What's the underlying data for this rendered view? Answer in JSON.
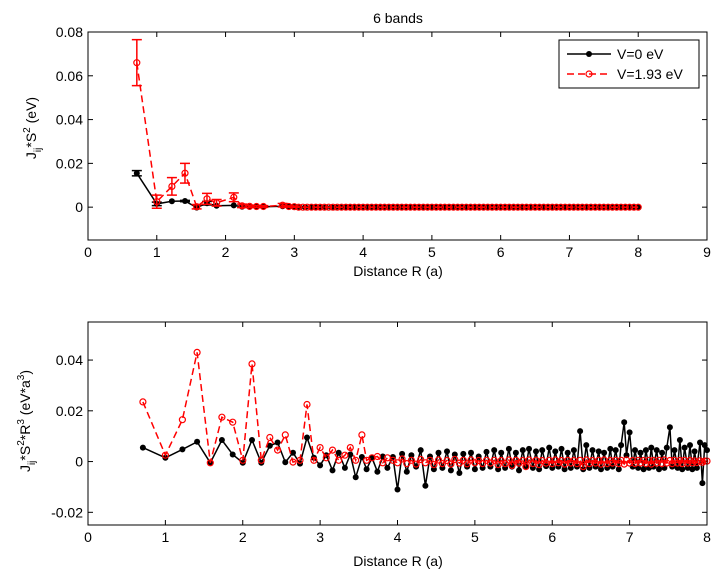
{
  "chart_data": [
    {
      "type": "line",
      "title": "6 bands",
      "xlabel": "Distance R (a)",
      "ylabel_parts": {
        "base": "J",
        "sub": "ij",
        "mid": "*S",
        "sup": "2",
        "unit": " (eV)"
      },
      "xlim": [
        0,
        9
      ],
      "ylim": [
        -0.015,
        0.08
      ],
      "xticks": [
        0,
        1,
        2,
        3,
        4,
        5,
        6,
        7,
        8,
        9
      ],
      "yticks": [
        0,
        0.02,
        0.04,
        0.06,
        0.08
      ],
      "ytick_labels": [
        "0",
        "0.02",
        "0.04",
        "0.06",
        "0.08"
      ],
      "legend": {
        "position": "top-right",
        "entries": [
          "V=0 eV",
          "V=1.93 eV"
        ]
      },
      "series": [
        {
          "name": "V=0 eV",
          "color": "#000000",
          "marker": "filled-circle",
          "line": "solid",
          "x": [
            0.71,
            1.0,
            1.22,
            1.41,
            1.58,
            1.73,
            1.87,
            2.12,
            2.24,
            2.35,
            2.45,
            2.55,
            2.83,
            2.92,
            3.0,
            3.08,
            3.16,
            3.24,
            3.32,
            3.39,
            3.46,
            3.54,
            3.6,
            3.67,
            3.74,
            3.81,
            3.87,
            3.94,
            4.0
          ],
          "y": [
            0.0155,
            0.0015,
            0.0027,
            0.0028,
            -0.0002,
            0.0018,
            0.0006,
            0.0008,
            0.0002,
            0.0001,
            0.0001,
            0.0002,
            0.0004,
            0.0001,
            0.0001,
            0,
            0,
            0,
            0,
            0,
            0,
            0,
            0,
            0,
            0,
            0,
            0,
            0,
            0
          ],
          "err": [
            0.0012,
            0.0008,
            0,
            0.0003,
            0,
            0.0008,
            0,
            0,
            0,
            0,
            0,
            0,
            0,
            0,
            0,
            0,
            0,
            0,
            0,
            0,
            0,
            0,
            0,
            0,
            0,
            0,
            0,
            0,
            0
          ]
        },
        {
          "name": "V=1.93 eV",
          "color": "#ff0000",
          "marker": "open-circle",
          "line": "dashed",
          "x": [
            0.71,
            1.0,
            1.22,
            1.41,
            1.58,
            1.73,
            1.87,
            2.12,
            2.24,
            2.35,
            2.45,
            2.55,
            2.83,
            2.92,
            3.0
          ],
          "y": [
            0.066,
            0.0025,
            0.0095,
            0.0155,
            0.0002,
            0.0038,
            0.002,
            0.0045,
            0.0006,
            0.0004,
            0.0003,
            0.0003,
            0.0009,
            0.0003,
            0.0002
          ],
          "err": [
            0.0105,
            0.003,
            0.004,
            0.0045,
            0.001,
            0.0025,
            0.0015,
            0.002,
            0.0008,
            0.0005,
            0.0004,
            0.0004,
            0.0008,
            0.0003,
            0.0003
          ]
        }
      ],
      "tail": {
        "note": "Both series continue with near-zero values from R=3 to R=8 (dense markers).",
        "x_start": 3.0,
        "x_end": 8.0,
        "step": 0.0625,
        "y": 0
      }
    },
    {
      "type": "line",
      "title": "",
      "xlabel": "Distance R (a)",
      "ylabel_parts": {
        "base": "J",
        "sub": "ij",
        "mid": "*S",
        "sup": "2",
        "mid2": "*R",
        "sup2": "3",
        "unit_pre": " (eV*a",
        "unit_sup": "3",
        "unit_post": ")"
      },
      "xlim": [
        0,
        8
      ],
      "ylim": [
        -0.025,
        0.055
      ],
      "xticks": [
        0,
        1,
        2,
        3,
        4,
        5,
        6,
        7,
        8
      ],
      "yticks": [
        -0.02,
        0,
        0.02,
        0.04
      ],
      "ytick_labels": [
        "-0.02",
        "0",
        "0.02",
        "0.04"
      ],
      "series": [
        {
          "name": "V=0 eV",
          "color": "#000000",
          "marker": "filled-circle",
          "line": "solid",
          "x": [
            0.71,
            1.0,
            1.22,
            1.41,
            1.58,
            1.73,
            1.87,
            2.0,
            2.12,
            2.24,
            2.35,
            2.45,
            2.55,
            2.65,
            2.74,
            2.83,
            2.92,
            3.0,
            3.08,
            3.16,
            3.24,
            3.32,
            3.39,
            3.46,
            3.54,
            3.6,
            3.67,
            3.74,
            3.81,
            3.87,
            3.94,
            4.0,
            4.06,
            4.12,
            4.18,
            4.24,
            4.3,
            4.36,
            4.42,
            4.47,
            4.53,
            4.58,
            4.64,
            4.69,
            4.74,
            4.8,
            4.85,
            4.9,
            4.95,
            5.0,
            5.05,
            5.1,
            5.15,
            5.2,
            5.25,
            5.3,
            5.34,
            5.39,
            5.44,
            5.48,
            5.53,
            5.57,
            5.62,
            5.66,
            5.7,
            5.75,
            5.79,
            5.83,
            5.87,
            5.92,
            5.96,
            6.0,
            6.04,
            6.08,
            6.12,
            6.16,
            6.2,
            6.24,
            6.28,
            6.32,
            6.36,
            6.4,
            6.44,
            6.48,
            6.52,
            6.56,
            6.6,
            6.63,
            6.67,
            6.71,
            6.75,
            6.78,
            6.82,
            6.86,
            6.89,
            6.93,
            6.96,
            7.0,
            7.04,
            7.07,
            7.11,
            7.14,
            7.18,
            7.21,
            7.25,
            7.28,
            7.31,
            7.35,
            7.38,
            7.42,
            7.45,
            7.48,
            7.52,
            7.55,
            7.58,
            7.62,
            7.65,
            7.68,
            7.71,
            7.75,
            7.78,
            7.81,
            7.84,
            7.87,
            7.91,
            7.94,
            7.97,
            8.0
          ],
          "y": [
            0.0055,
            0.0015,
            0.0048,
            0.0078,
            -0.0005,
            0.0085,
            0.0028,
            -0.0005,
            0.0085,
            -0.0005,
            0.0062,
            0.0075,
            -0.0003,
            0.0035,
            -0.0008,
            0.0095,
            0.0015,
            -0.0015,
            0.0025,
            -0.0035,
            0.0035,
            -0.0025,
            0.0028,
            -0.0062,
            0.0018,
            -0.003,
            0.0015,
            -0.004,
            0.002,
            -0.0025,
            0.0018,
            -0.011,
            0.003,
            -0.004,
            0.0025,
            -0.002,
            0.0045,
            -0.0095,
            0.002,
            -0.003,
            0.0035,
            -0.0025,
            0.004,
            -0.0035,
            0.0028,
            -0.0045,
            0.003,
            -0.002,
            0.0035,
            -0.003,
            0.002,
            -0.0025,
            0.0038,
            -0.002,
            0.0045,
            -0.003,
            0.0035,
            -0.0025,
            0.005,
            -0.002,
            0.0035,
            -0.0035,
            0.0045,
            -0.002,
            0.005,
            -0.0025,
            0.004,
            -0.003,
            0.0045,
            -0.0018,
            0.0055,
            -0.0025,
            0.004,
            -0.002,
            0.005,
            -0.003,
            0.0035,
            -0.0025,
            0.0045,
            -0.002,
            0.012,
            -0.003,
            0.0065,
            -0.0025,
            0.0045,
            -0.002,
            0.004,
            -0.003,
            0.0035,
            -0.0025,
            0.005,
            -0.002,
            0.0045,
            -0.003,
            0.0065,
            0.0155,
            0.0025,
            0.0115,
            -0.002,
            0.0045,
            -0.0025,
            0.0035,
            -0.003,
            0.0045,
            -0.0025,
            0.0055,
            -0.002,
            0.0045,
            -0.003,
            0.0035,
            -0.0025,
            0.0055,
            0.0135,
            -0.002,
            0.0045,
            -0.0025,
            0.0085,
            -0.003,
            0.0055,
            -0.0025,
            0.0065,
            -0.003,
            0.004,
            -0.0025,
            0.0075,
            -0.0085,
            0.0065,
            0.0045
          ]
        },
        {
          "name": "V=1.93 eV",
          "color": "#ff0000",
          "marker": "open-circle",
          "line": "dashed",
          "x": [
            0.71,
            1.0,
            1.22,
            1.41,
            1.58,
            1.73,
            1.87,
            2.0,
            2.12,
            2.24,
            2.35,
            2.45,
            2.55,
            2.65,
            2.74,
            2.83,
            2.92,
            3.0,
            3.08,
            3.16,
            3.24,
            3.32,
            3.39,
            3.46,
            3.54,
            3.6,
            3.67,
            3.74,
            3.81,
            3.87,
            3.94,
            4.0,
            4.06,
            4.12,
            4.18,
            4.24,
            4.3,
            4.36,
            4.42,
            4.47,
            4.53,
            4.58,
            4.64,
            4.69,
            4.74,
            4.8,
            4.85,
            4.9,
            4.95,
            5.0,
            5.05,
            5.1,
            5.15,
            5.2,
            5.25,
            5.3,
            5.34,
            5.39,
            5.44,
            5.48,
            5.53,
            5.57,
            5.62,
            5.66,
            5.7,
            5.75,
            5.79,
            5.83,
            5.87,
            5.92,
            5.96,
            6.0,
            6.04,
            6.08,
            6.12,
            6.16,
            6.2,
            6.24,
            6.28,
            6.32,
            6.36,
            6.4,
            6.44,
            6.48,
            6.52,
            6.56,
            6.6,
            6.63,
            6.67,
            6.71,
            6.75,
            6.78,
            6.82,
            6.86,
            6.89,
            6.93,
            6.96,
            7.0,
            7.04,
            7.07,
            7.11,
            7.14,
            7.18,
            7.21,
            7.25,
            7.28,
            7.31,
            7.35,
            7.38,
            7.42,
            7.45,
            7.48,
            7.52,
            7.55,
            7.58,
            7.62,
            7.65,
            7.68,
            7.71,
            7.75,
            7.78,
            7.81,
            7.84,
            7.87,
            7.91,
            7.94,
            7.97,
            8.0
          ],
          "y": [
            0.0235,
            0.0025,
            0.0165,
            0.043,
            -0.0005,
            0.0175,
            0.0155,
            0.0005,
            0.0385,
            0.0005,
            0.0095,
            0.0045,
            0.0105,
            -0.0002,
            0.0005,
            0.0225,
            0.0005,
            0.0055,
            0.0015,
            0.0045,
            0.0005,
            0.0025,
            0.0055,
            0.0005,
            0.0105,
            0.0005,
            0.0015,
            0.002,
            -0.0005,
            0.0015,
            0.0005,
            -0.0005,
            0.001,
            -0.0008,
            0.0005,
            -0.001,
            0.0008,
            -0.0005,
            0.0005,
            -0.0012,
            0.0006,
            -0.0008,
            0.0004,
            -0.001,
            0.0008,
            -0.0006,
            0.0005,
            -0.0009,
            0.0006,
            -0.0005,
            0.0004,
            -0.0008,
            0.0005,
            -0.0006,
            0.0005,
            -0.0012,
            0.0004,
            -0.0008,
            0.0006,
            -0.0015,
            0.0005,
            -0.0006,
            0.0004,
            -0.002,
            0.0006,
            -0.0008,
            0.0005,
            -0.0012,
            0.0004,
            -0.0006,
            0.0005,
            -0.0008,
            0.0006,
            -0.0005,
            0.0004,
            -0.001,
            0.0005,
            -0.0006,
            0.0004,
            -0.0008,
            0.0005,
            -0.002,
            0.0006,
            -0.0008,
            0.0004,
            -0.0006,
            0.0005,
            -0.001,
            0.0006,
            -0.0008,
            0.0004,
            -0.0006,
            0.0005,
            -0.0008,
            0.0005,
            -0.001,
            0.0006,
            -0.0006,
            0.0004,
            -0.0008,
            0.0005,
            -0.0006,
            0.0004,
            -0.0008,
            0.0005,
            -0.001,
            0.0004,
            -0.0006,
            0.0005,
            -0.0008,
            0.0006,
            -0.0006,
            0.0004,
            -0.0008,
            0.0005,
            -0.0006,
            0.0004,
            -0.0008,
            0.0005,
            -0.0006,
            0.0004,
            -0.0005,
            0.0003,
            -0.0004,
            0.0003,
            -0.0003,
            0.0002,
            0.0002
          ]
        }
      ]
    }
  ]
}
